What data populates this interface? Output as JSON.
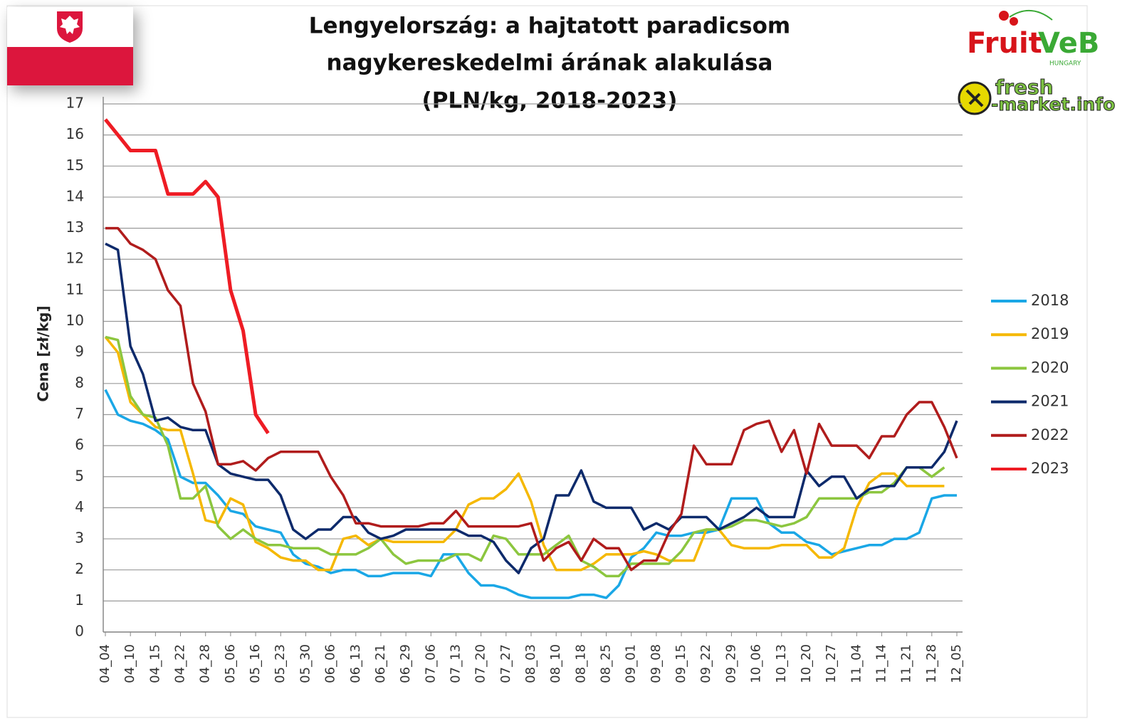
{
  "chart_data": {
    "type": "line",
    "title": [
      "Lengyelország: a hajtatott paradicsom",
      "nagykereskedelmi árának alakulása",
      "(PLN/kg, 2018-2023)"
    ],
    "y_label": "Cena [zł/kg]",
    "categories": [
      "04_04",
      null,
      "04_10",
      null,
      "04_15",
      null,
      "04_22",
      null,
      "04_28",
      null,
      "05_06",
      null,
      "05_16",
      null,
      "05_23",
      null,
      "05_30",
      null,
      "06_06",
      null,
      "06_13",
      null,
      "06_21",
      null,
      "06_29",
      null,
      "07_06",
      null,
      "07_13",
      null,
      "07_20",
      null,
      "07_27",
      null,
      "08_03",
      null,
      "08_10",
      null,
      "08_18",
      null,
      "08_25",
      null,
      "09_01",
      null,
      "09_08",
      null,
      "09_15",
      null,
      "09_22",
      null,
      "09_29",
      null,
      "10_06",
      null,
      "10_13",
      null,
      "10_20",
      null,
      "10_27",
      null,
      "11_04",
      null,
      "11_14",
      null,
      "11_21",
      null,
      "11_28",
      null,
      "12_05"
    ],
    "series": [
      {
        "name": "2018",
        "color": "#1aa7e6",
        "values": [
          7.8,
          7.0,
          6.8,
          6.7,
          6.5,
          6.2,
          5.0,
          4.8,
          4.8,
          4.4,
          3.9,
          3.8,
          3.4,
          3.3,
          3.2,
          2.5,
          2.2,
          2.1,
          1.9,
          2.0,
          2.0,
          1.8,
          1.8,
          1.9,
          1.9,
          1.9,
          1.8,
          2.5,
          2.5,
          1.9,
          1.5,
          1.5,
          1.4,
          1.2,
          1.1,
          1.1,
          1.1,
          1.1,
          1.2,
          1.2,
          1.1,
          1.5,
          2.4,
          2.7,
          3.2,
          3.1,
          3.1,
          3.2,
          3.2,
          3.3,
          4.3,
          4.3,
          4.3,
          3.5,
          3.2,
          3.2,
          2.9,
          2.8,
          2.5,
          2.6,
          2.7,
          2.8,
          2.8,
          3.0,
          3.0,
          3.2,
          4.3,
          4.4,
          4.4
        ]
      },
      {
        "name": "2019",
        "color": "#f5b800",
        "values": [
          9.5,
          9.0,
          7.4,
          7.0,
          6.6,
          6.5,
          6.5,
          5.1,
          3.6,
          3.5,
          4.3,
          4.1,
          2.9,
          2.7,
          2.4,
          2.3,
          2.3,
          2.0,
          2.0,
          3.0,
          3.1,
          2.8,
          3.0,
          2.9,
          2.9,
          2.9,
          2.9,
          2.9,
          3.3,
          4.1,
          4.3,
          4.3,
          4.6,
          5.1,
          4.2,
          2.8,
          2.0,
          2.0,
          2.0,
          2.2,
          2.5,
          2.5,
          2.5,
          2.6,
          2.5,
          2.3,
          2.3,
          2.3,
          3.3,
          3.3,
          2.8,
          2.7,
          2.7,
          2.7,
          2.8,
          2.8,
          2.8,
          2.4,
          2.4,
          2.7,
          4.0,
          4.8,
          5.1,
          5.1,
          4.7,
          4.7,
          4.7,
          4.7,
          null
        ]
      },
      {
        "name": "2020",
        "color": "#8cc63f",
        "values": [
          9.5,
          9.4,
          7.6,
          7.0,
          6.9,
          6.0,
          4.3,
          4.3,
          4.7,
          3.4,
          3.0,
          3.3,
          3.0,
          2.8,
          2.8,
          2.7,
          2.7,
          2.7,
          2.5,
          2.5,
          2.5,
          2.7,
          3.0,
          2.5,
          2.2,
          2.3,
          2.3,
          2.3,
          2.5,
          2.5,
          2.3,
          3.1,
          3.0,
          2.5,
          2.5,
          2.5,
          2.8,
          3.1,
          2.3,
          2.1,
          1.8,
          1.8,
          2.2,
          2.2,
          2.2,
          2.2,
          2.6,
          3.2,
          3.3,
          3.3,
          3.4,
          3.6,
          3.6,
          3.5,
          3.4,
          3.5,
          3.7,
          4.3,
          4.3,
          4.3,
          4.3,
          4.5,
          4.5,
          4.8,
          5.3,
          5.3,
          5.0,
          5.3,
          null
        ]
      },
      {
        "name": "2021",
        "color": "#0d2a6b",
        "values": [
          12.5,
          12.3,
          9.2,
          8.3,
          6.8,
          6.9,
          6.6,
          6.5,
          6.5,
          5.4,
          5.1,
          5.0,
          4.9,
          4.9,
          4.4,
          3.3,
          3.0,
          3.3,
          3.3,
          3.7,
          3.7,
          3.2,
          3.0,
          3.1,
          3.3,
          3.3,
          3.3,
          3.3,
          3.3,
          3.1,
          3.1,
          2.9,
          2.3,
          1.9,
          2.7,
          3.0,
          4.4,
          4.4,
          5.2,
          4.2,
          4.0,
          4.0,
          4.0,
          3.3,
          3.5,
          3.3,
          3.7,
          3.7,
          3.7,
          3.3,
          3.5,
          3.7,
          4.0,
          3.7,
          3.7,
          3.7,
          5.2,
          4.7,
          5.0,
          5.0,
          4.3,
          4.6,
          4.7,
          4.7,
          5.3,
          5.3,
          5.3,
          5.8,
          6.8
        ]
      },
      {
        "name": "2022",
        "color": "#b01c1c",
        "values": [
          13,
          13,
          12.5,
          12.3,
          12,
          11,
          10.5,
          8,
          7.1,
          5.4,
          5.4,
          5.5,
          5.2,
          5.6,
          5.8,
          5.8,
          5.8,
          5.8,
          5.0,
          4.4,
          3.5,
          3.5,
          3.4,
          3.4,
          3.4,
          3.4,
          3.5,
          3.5,
          3.9,
          3.4,
          3.4,
          3.4,
          3.4,
          3.4,
          3.5,
          2.3,
          2.7,
          2.9,
          2.3,
          3.0,
          2.7,
          2.7,
          2.0,
          2.3,
          2.3,
          3.2,
          3.8,
          6.0,
          5.4,
          5.4,
          5.4,
          6.5,
          6.7,
          6.8,
          5.8,
          6.5,
          5.1,
          6.7,
          6.0,
          6.0,
          6.0,
          5.6,
          6.3,
          6.3,
          7.0,
          7.4,
          7.4,
          6.6,
          5.6
        ]
      },
      {
        "name": "2023",
        "color": "#ee1c24",
        "values": [
          16.5,
          16.0,
          15.5,
          15.5,
          15.5,
          14.1,
          14.1,
          14.1,
          14.5,
          14.0,
          11.0,
          9.7,
          7.0,
          6.4,
          null,
          null,
          null,
          null,
          null,
          null,
          null,
          null,
          null,
          null,
          null,
          null,
          null,
          null,
          null,
          null,
          null,
          null,
          null,
          null,
          null,
          null,
          null,
          null,
          null,
          null,
          null,
          null,
          null,
          null,
          null,
          null,
          null,
          null,
          null,
          null,
          null,
          null,
          null,
          null,
          null,
          null,
          null,
          null,
          null,
          null,
          null,
          null,
          null,
          null,
          null,
          null,
          null,
          null,
          null
        ]
      }
    ],
    "ylim": [
      0,
      17
    ],
    "yticks": [
      0,
      1,
      2,
      3,
      4,
      5,
      6,
      7,
      8,
      9,
      10,
      11,
      12,
      13,
      14,
      15,
      16,
      17
    ],
    "grid": true,
    "legend": "right"
  },
  "logos": {
    "fruit": "Fruit",
    "veb": "VeB",
    "hungary": "HUNGARY",
    "fresh": "fresh",
    "market": "-market.info"
  }
}
